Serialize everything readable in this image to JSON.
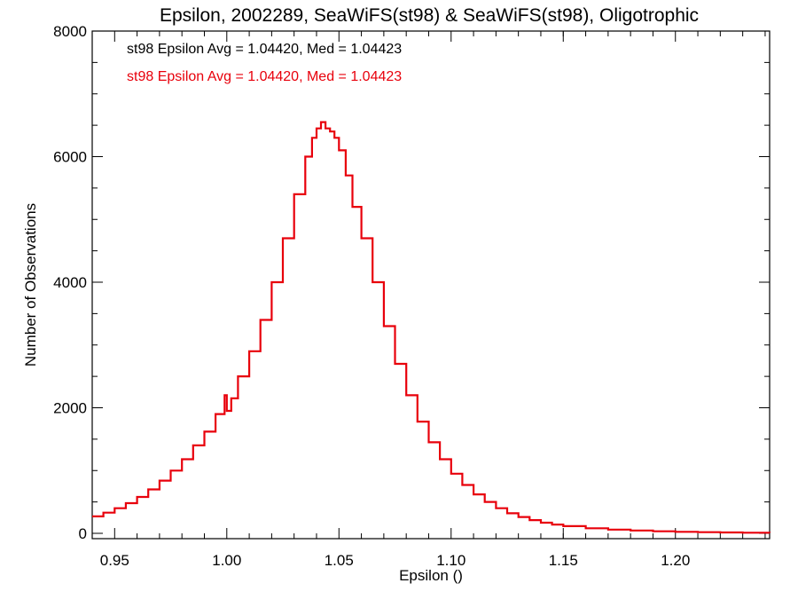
{
  "chart_data": {
    "type": "line",
    "style": "histogram-step",
    "title": "Epsilon, 2002289, SeaWiFS(st98) & SeaWiFS(st98), Oligotrophic",
    "xlabel": "Epsilon ()",
    "ylabel": "Number of Observations",
    "xlim": [
      0.94,
      1.242
    ],
    "ylim": [
      0,
      8000
    ],
    "x_ticks": [
      0.95,
      1.0,
      1.05,
      1.1,
      1.15,
      1.2
    ],
    "x_tick_labels": [
      "0.95",
      "1.00",
      "1.05",
      "1.10",
      "1.15",
      "1.20"
    ],
    "y_ticks": [
      0,
      2000,
      4000,
      6000,
      8000
    ],
    "y_tick_labels": [
      "0",
      "2000",
      "4000",
      "6000",
      "8000"
    ],
    "grid": false,
    "legend_position": "top-left",
    "legend": [
      {
        "text": "st98 Epsilon Avg = 1.04420, Med = 1.04423",
        "color": "#000000"
      },
      {
        "text": "st98 Epsilon Avg = 1.04420, Med = 1.04423",
        "color": "#e8000b"
      }
    ],
    "series": [
      {
        "name": "st98",
        "color": "#e8000b",
        "x": [
          0.94,
          0.945,
          0.95,
          0.955,
          0.96,
          0.965,
          0.97,
          0.975,
          0.98,
          0.985,
          0.99,
          0.995,
          0.999,
          1.0,
          1.002,
          1.005,
          1.01,
          1.015,
          1.02,
          1.025,
          1.03,
          1.035,
          1.038,
          1.04,
          1.042,
          1.044,
          1.046,
          1.048,
          1.05,
          1.053,
          1.056,
          1.06,
          1.065,
          1.07,
          1.075,
          1.08,
          1.085,
          1.09,
          1.095,
          1.1,
          1.105,
          1.11,
          1.115,
          1.12,
          1.125,
          1.13,
          1.135,
          1.14,
          1.145,
          1.15,
          1.16,
          1.17,
          1.18,
          1.19,
          1.2,
          1.21,
          1.22,
          1.23,
          1.242
        ],
        "values": [
          270,
          330,
          400,
          480,
          580,
          700,
          840,
          1000,
          1180,
          1400,
          1620,
          1900,
          2200,
          1950,
          2150,
          2500,
          2900,
          3400,
          4000,
          4700,
          5400,
          6000,
          6300,
          6450,
          6550,
          6450,
          6400,
          6300,
          6100,
          5700,
          5200,
          4700,
          4000,
          3300,
          2700,
          2200,
          1780,
          1450,
          1180,
          950,
          770,
          620,
          500,
          400,
          320,
          260,
          210,
          170,
          140,
          115,
          80,
          60,
          45,
          32,
          24,
          18,
          14,
          10,
          8
        ]
      }
    ]
  }
}
